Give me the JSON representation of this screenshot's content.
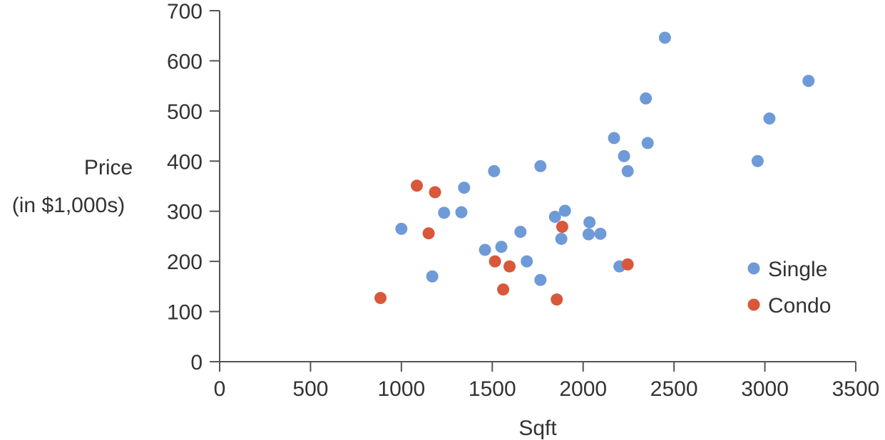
{
  "chart_data": {
    "type": "scatter",
    "xlabel": "Sqft",
    "ylabel_lines": [
      "Price",
      "(in $1,000s)"
    ],
    "xlim": [
      0,
      3500
    ],
    "ylim": [
      0,
      700
    ],
    "x_ticks": [
      0,
      500,
      1000,
      1500,
      2000,
      2500,
      3000,
      3500
    ],
    "y_ticks": [
      0,
      100,
      200,
      300,
      400,
      500,
      600,
      700
    ],
    "grid": false,
    "legend": {
      "placement": "right"
    },
    "series": [
      {
        "name": "Single",
        "color": "#6f9ad8",
        "points": [
          [
            1000,
            265
          ],
          [
            1170,
            170
          ],
          [
            1235,
            297
          ],
          [
            1330,
            298
          ],
          [
            1345,
            347
          ],
          [
            1460,
            223
          ],
          [
            1510,
            380
          ],
          [
            1550,
            229
          ],
          [
            1655,
            259
          ],
          [
            1690,
            200
          ],
          [
            1765,
            390
          ],
          [
            1765,
            163
          ],
          [
            1845,
            289
          ],
          [
            1880,
            245
          ],
          [
            1900,
            301
          ],
          [
            2030,
            254
          ],
          [
            2035,
            278
          ],
          [
            2095,
            255
          ],
          [
            2170,
            446
          ],
          [
            2200,
            190
          ],
          [
            2225,
            410
          ],
          [
            2245,
            380
          ],
          [
            2345,
            525
          ],
          [
            2355,
            436
          ],
          [
            2450,
            646
          ],
          [
            2960,
            400
          ],
          [
            3025,
            485
          ],
          [
            3240,
            560
          ]
        ]
      },
      {
        "name": "Condo",
        "color": "#d9573a",
        "points": [
          [
            885,
            127
          ],
          [
            1085,
            351
          ],
          [
            1150,
            256
          ],
          [
            1185,
            338
          ],
          [
            1515,
            200
          ],
          [
            1560,
            144
          ],
          [
            1595,
            190
          ],
          [
            1855,
            124
          ],
          [
            1885,
            269
          ],
          [
            2245,
            194
          ]
        ]
      }
    ]
  }
}
